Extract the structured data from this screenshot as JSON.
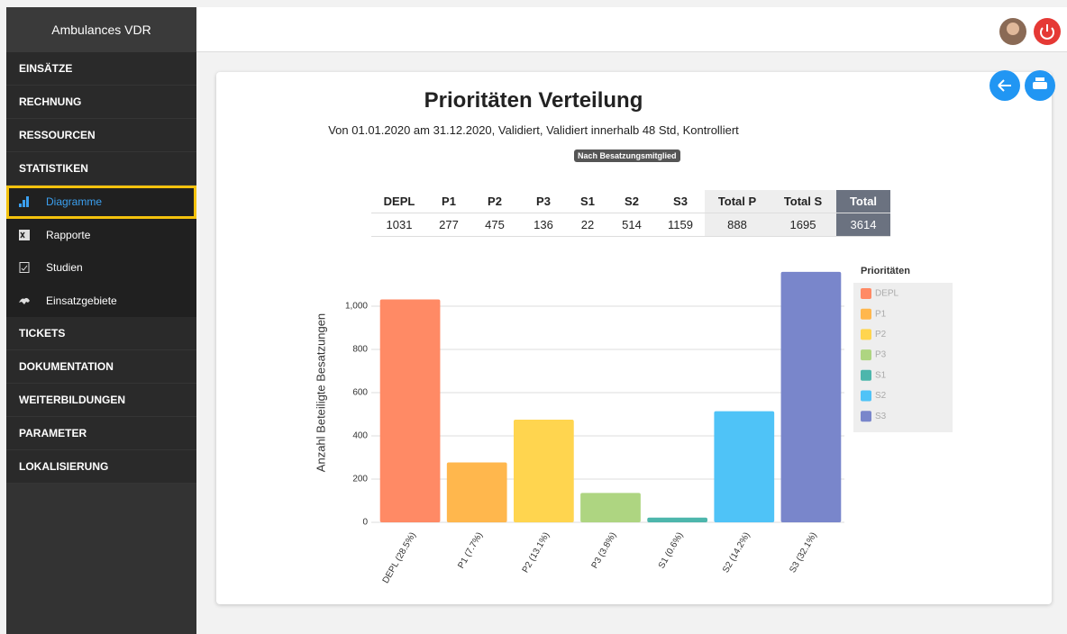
{
  "sidebar": {
    "brand": "Ambulances VDR",
    "sections_top": [
      "EINSÄTZE",
      "RECHNUNG",
      "RESSOURCEN",
      "STATISTIKEN"
    ],
    "submenu": [
      "Diagramme",
      "Rapporte",
      "Studien",
      "Einsatzgebiete"
    ],
    "sections_bottom": [
      "TICKETS",
      "DOKUMENTATION",
      "WEITERBILDUNGEN",
      "PARAMETER",
      "LOKALISIERUNG"
    ]
  },
  "header": {
    "title": "Prioritäten Verteilung",
    "subtitle": "Von 01.01.2020 am 31.12.2020, Validiert, Validiert innerhalb 48 Std, Kontrolliert",
    "badge": "Nach Besatzungsmitglied"
  },
  "table": {
    "columns": [
      "DEPL",
      "P1",
      "P2",
      "P3",
      "S1",
      "S2",
      "S3",
      "Total P",
      "Total S",
      "Total"
    ],
    "rows": [
      [
        1031,
        277,
        475,
        136,
        22,
        514,
        1159,
        888,
        1695,
        3614
      ]
    ]
  },
  "chart_data": {
    "type": "bar",
    "y_label": "Anzahl Beteiligte Besatzungen",
    "categories": [
      "DEPL (28.5%)",
      "P1 (7.7%)",
      "P2 (13.1%)",
      "P3 (3.8%)",
      "S1 (0.6%)",
      "S2 (14.2%)",
      "S3 (32.1%)"
    ],
    "values": [
      1031,
      277,
      475,
      136,
      22,
      514,
      1159
    ],
    "colors": [
      "#ff8a65",
      "#ffb74d",
      "#ffd54f",
      "#aed581",
      "#4db6ac",
      "#4fc3f7",
      "#7986cb"
    ],
    "legend_title": "Prioritäten",
    "legend": [
      "DEPL",
      "P1",
      "P2",
      "P3",
      "S1",
      "S2",
      "S3"
    ],
    "ylim": [
      0,
      1200
    ],
    "yticks": [
      0,
      200,
      400,
      600,
      800,
      {
        "value": 1000,
        "label": "1,000"
      }
    ],
    "grid": true
  }
}
